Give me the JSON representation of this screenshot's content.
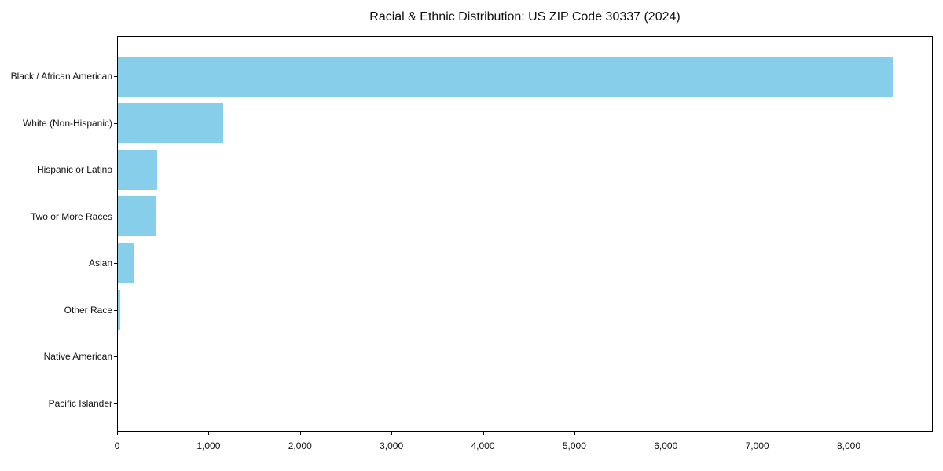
{
  "chart_data": {
    "type": "bar",
    "orientation": "horizontal",
    "title": "Racial & Ethnic Distribution: US ZIP Code 30337 (2024)",
    "categories": [
      "Black / African American",
      "White (Non-Hispanic)",
      "Hispanic or Latino",
      "Two or More Races",
      "Asian",
      "Other Race",
      "Native American",
      "Pacific Islander"
    ],
    "values": [
      8480,
      1150,
      430,
      410,
      180,
      30,
      0,
      0
    ],
    "xlabel": "",
    "ylabel": "",
    "xlim": [
      0,
      8920
    ],
    "x_ticks": [
      0,
      1000,
      2000,
      3000,
      4000,
      5000,
      6000,
      7000,
      8000
    ],
    "x_tick_labels": [
      "0",
      "1,000",
      "2,000",
      "3,000",
      "4,000",
      "5,000",
      "6,000",
      "7,000",
      "8,000"
    ],
    "bar_color": "#87CEEB",
    "axis_color": "#000000",
    "text_color": "#111111",
    "background": "#ffffff",
    "grid": false,
    "legend": "none"
  }
}
